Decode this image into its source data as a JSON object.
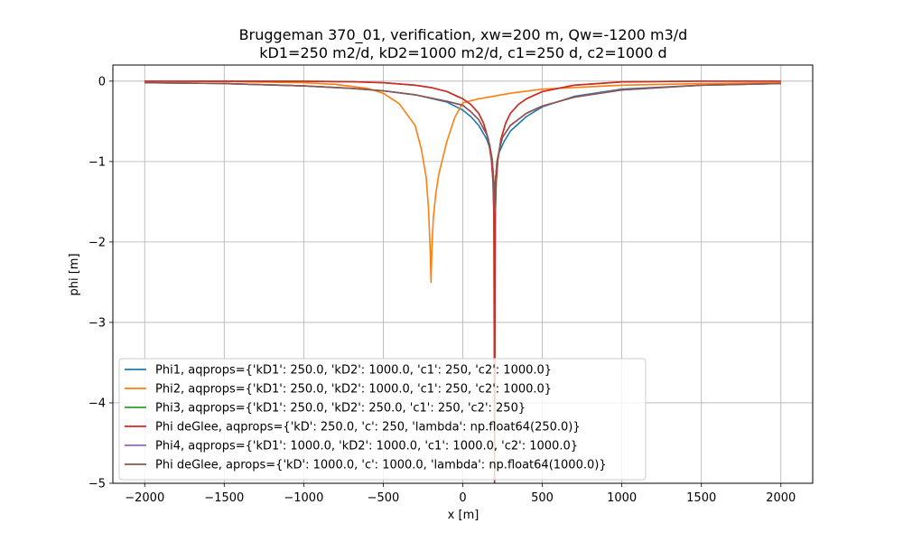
{
  "chart_data": {
    "type": "line",
    "title": "Bruggeman 370_01, verification, xw=200 m, Qw=-1200 m3/d",
    "subtitle": "kD1=250 m2/d, kD2=1000 m2/d, c1=250 d, c2=1000 d",
    "xlabel": "x [m]",
    "ylabel": "phi [m]",
    "xlim": [
      -2200,
      2200
    ],
    "ylim": [
      -5,
      0.2
    ],
    "xticks": [
      -2000,
      -1500,
      -1000,
      -500,
      0,
      500,
      1000,
      1500,
      2000
    ],
    "xtick_labels": [
      "−2000",
      "−1500",
      "−1000",
      "−500",
      "0",
      "500",
      "1000",
      "1500",
      "2000"
    ],
    "yticks": [
      0,
      -1,
      -2,
      -3,
      -4,
      -5
    ],
    "ytick_labels": [
      "0",
      "−1",
      "−2",
      "−3",
      "−4",
      "−5"
    ],
    "grid": true,
    "legend_position": "lower-left",
    "series": [
      {
        "name": "Phi1, aqprops={'kD1': 250.0, 'kD2': 1000.0, 'c1': 250, 'c2': 1000.0}",
        "color": "#1f77b4",
        "x": [
          -2000,
          -1500,
          -1000,
          -700,
          -500,
          -300,
          -100,
          0,
          50,
          100,
          150,
          170,
          185,
          195,
          200,
          205,
          215,
          230,
          260,
          300,
          400,
          500,
          700,
          1000,
          1500,
          2000
        ],
        "y": [
          -0.02,
          -0.03,
          -0.06,
          -0.09,
          -0.12,
          -0.17,
          -0.26,
          -0.36,
          -0.44,
          -0.55,
          -0.72,
          -0.83,
          -0.98,
          -1.25,
          -1.65,
          -1.25,
          -1.0,
          -0.88,
          -0.75,
          -0.62,
          -0.44,
          -0.32,
          -0.19,
          -0.1,
          -0.05,
          -0.03
        ]
      },
      {
        "name": "Phi2, aqprops={'kD1': 250.0, 'kD2': 1000.0, 'c1': 250, 'c2': 1000.0}",
        "color": "#ff7f0e",
        "x": [
          -2000,
          -1500,
          -1000,
          -800,
          -600,
          -500,
          -400,
          -300,
          -260,
          -230,
          -215,
          -205,
          -200,
          -195,
          -185,
          -170,
          -150,
          -100,
          -50,
          0,
          100,
          300,
          500,
          1000,
          1500,
          2000
        ],
        "y": [
          0.0,
          -0.005,
          -0.02,
          -0.04,
          -0.09,
          -0.15,
          -0.28,
          -0.55,
          -0.85,
          -1.2,
          -1.6,
          -2.1,
          -2.5,
          -2.1,
          -1.7,
          -1.4,
          -1.15,
          -0.75,
          -0.45,
          -0.27,
          -0.22,
          -0.15,
          -0.1,
          -0.05,
          -0.03,
          -0.02
        ]
      },
      {
        "name": "Phi3, aqprops={'kD1': 250.0, 'kD2': 250.0, 'c1': 250, 'c2': 250}",
        "color": "#2ca02c",
        "x": [
          -2000,
          -1500,
          -1000,
          -700,
          -500,
          -300,
          -200,
          -100,
          0,
          50,
          100,
          130,
          160,
          180,
          190,
          196,
          200,
          204,
          210,
          220,
          240,
          270,
          300,
          350,
          400,
          500,
          700,
          1000,
          1500,
          2000
        ],
        "y": [
          0.0,
          0.0,
          -0.001,
          -0.008,
          -0.02,
          -0.05,
          -0.08,
          -0.13,
          -0.22,
          -0.29,
          -0.4,
          -0.52,
          -0.72,
          -0.98,
          -1.25,
          -1.7,
          -5.0,
          -1.7,
          -1.25,
          -0.98,
          -0.72,
          -0.52,
          -0.4,
          -0.29,
          -0.22,
          -0.13,
          -0.05,
          -0.01,
          0.0,
          0.0
        ]
      },
      {
        "name": "Phi deGlee, aqprops={'kD': 250.0, 'c': 250, 'lambda': np.float64(250.0)}",
        "color": "#d62728",
        "x": [
          -2000,
          -1500,
          -1000,
          -700,
          -500,
          -300,
          -200,
          -100,
          0,
          50,
          100,
          130,
          160,
          180,
          190,
          196,
          200,
          204,
          210,
          220,
          240,
          270,
          300,
          350,
          400,
          500,
          700,
          1000,
          1500,
          2000
        ],
        "y": [
          0.0,
          0.0,
          -0.001,
          -0.008,
          -0.02,
          -0.05,
          -0.08,
          -0.13,
          -0.22,
          -0.29,
          -0.4,
          -0.52,
          -0.72,
          -0.98,
          -1.25,
          -1.7,
          -5.0,
          -1.7,
          -1.25,
          -0.98,
          -0.72,
          -0.52,
          -0.4,
          -0.29,
          -0.22,
          -0.13,
          -0.05,
          -0.01,
          0.0,
          0.0
        ]
      },
      {
        "name": "Phi4, aqprops={'kD1': 1000.0, 'kD2': 1000.0, 'c1': 1000.0, 'c2': 1000.0}",
        "color": "#9467bd",
        "x": [
          -2000,
          -1500,
          -1000,
          -700,
          -500,
          -300,
          -100,
          0,
          50,
          100,
          150,
          170,
          185,
          195,
          200,
          205,
          215,
          230,
          250,
          300,
          400,
          500,
          700,
          1000,
          1500,
          2000
        ],
        "y": [
          -0.02,
          -0.03,
          -0.06,
          -0.09,
          -0.12,
          -0.17,
          -0.25,
          -0.3,
          -0.38,
          -0.48,
          -0.66,
          -0.8,
          -0.98,
          -1.25,
          -1.65,
          -1.25,
          -1.0,
          -0.85,
          -0.7,
          -0.55,
          -0.4,
          -0.31,
          -0.2,
          -0.11,
          -0.05,
          -0.03
        ]
      },
      {
        "name": "Phi deGlee, aprops={'kD': 1000.0, 'c': 1000.0, 'lambda': np.float64(1000.0)}",
        "color": "#8c564b",
        "x": [
          -2000,
          -1500,
          -1000,
          -700,
          -500,
          -300,
          -100,
          0,
          50,
          100,
          150,
          170,
          185,
          195,
          200,
          205,
          215,
          230,
          250,
          300,
          400,
          500,
          700,
          1000,
          1500,
          2000
        ],
        "y": [
          -0.02,
          -0.03,
          -0.06,
          -0.09,
          -0.12,
          -0.17,
          -0.25,
          -0.3,
          -0.38,
          -0.48,
          -0.66,
          -0.8,
          -0.98,
          -1.25,
          -1.65,
          -1.25,
          -1.0,
          -0.85,
          -0.7,
          -0.55,
          -0.4,
          -0.31,
          -0.2,
          -0.11,
          -0.05,
          -0.03
        ]
      }
    ]
  }
}
